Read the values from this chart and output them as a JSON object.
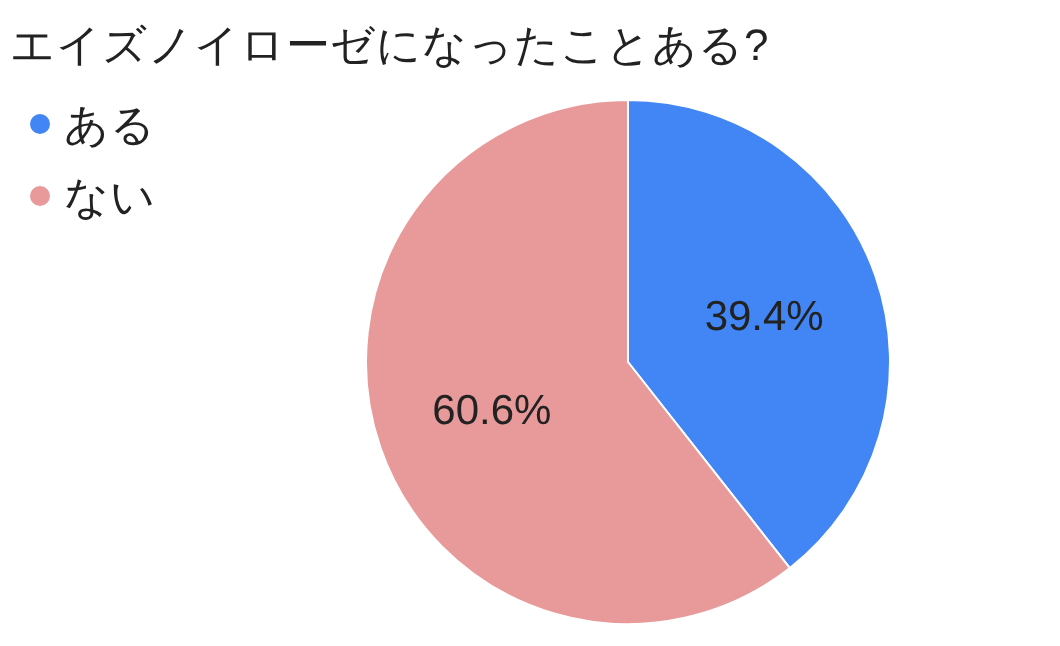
{
  "chart_data": {
    "type": "pie",
    "title": "エイズノイローゼになったことある?",
    "categories": [
      "ある",
      "ない"
    ],
    "values": [
      39.4,
      60.6
    ],
    "colors": [
      "#4285f4",
      "#e89a9a"
    ],
    "value_labels": [
      "39.4%",
      "60.6%"
    ],
    "legend": "top left"
  }
}
